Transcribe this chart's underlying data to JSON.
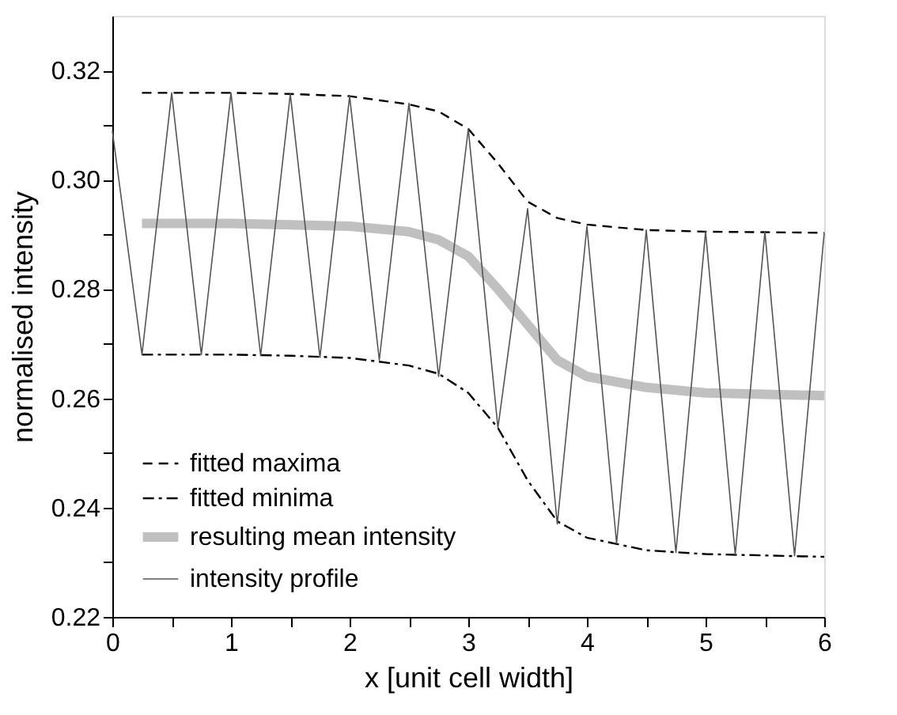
{
  "chart_data": {
    "type": "line",
    "xlabel": "x [unit cell width]",
    "ylabel": "normalised intensity",
    "xlim": [
      0,
      6
    ],
    "ylim": [
      0.22,
      0.33
    ],
    "xticks": [
      0,
      {
        "value": 0.5,
        "label": null
      },
      1,
      {
        "value": 1.5,
        "label": null
      },
      2,
      {
        "value": 2.5,
        "label": null
      },
      3,
      {
        "value": 3.5,
        "label": null
      },
      4,
      {
        "value": 4.5,
        "label": null
      },
      5,
      {
        "value": 5.5,
        "label": null
      },
      6
    ],
    "yticks": [
      {
        "value": 0.22,
        "label": "0.22"
      },
      {
        "value": 0.23,
        "label": null
      },
      {
        "value": 0.24,
        "label": "0.24"
      },
      {
        "value": 0.25,
        "label": null
      },
      {
        "value": 0.26,
        "label": "0.26"
      },
      {
        "value": 0.27,
        "label": null
      },
      {
        "value": 0.28,
        "label": "0.28"
      },
      {
        "value": 0.29,
        "label": null
      },
      {
        "value": 0.3,
        "label": "0.30"
      },
      {
        "value": 0.31,
        "label": null
      },
      {
        "value": 0.32,
        "label": "0.32"
      }
    ],
    "grid": false,
    "legend": "bottom left",
    "marker": "none",
    "series": [
      {
        "name": "fitted maxima",
        "type": "line",
        "line_style": "dashed",
        "color": "#000000",
        "x": [
          0.25,
          1,
          1.5,
          2,
          2.5,
          2.75,
          3,
          3.25,
          3.5,
          3.75,
          4,
          4.5,
          5,
          6
        ],
        "values": [
          0.3159,
          0.3159,
          0.3157,
          0.3153,
          0.3138,
          0.3125,
          0.3093,
          0.303,
          0.296,
          0.293,
          0.2918,
          0.2908,
          0.2905,
          0.2903
        ]
      },
      {
        "name": "fitted minima",
        "type": "line",
        "line_style": "dashdot",
        "color": "#000000",
        "x": [
          0.25,
          1,
          1.5,
          2,
          2.5,
          2.75,
          3,
          3.25,
          3.5,
          3.75,
          4,
          4.5,
          5,
          6
        ],
        "values": [
          0.268,
          0.268,
          0.2678,
          0.2674,
          0.266,
          0.2645,
          0.261,
          0.2546,
          0.245,
          0.2375,
          0.2345,
          0.2322,
          0.2315,
          0.231
        ]
      },
      {
        "name": "resulting mean intensity",
        "type": "line",
        "line_style": "solid",
        "color": "#c0c0c0",
        "x": [
          0.25,
          1,
          2,
          2.5,
          2.75,
          3,
          3.25,
          3.5,
          3.75,
          4,
          4.5,
          5,
          6
        ],
        "values": [
          0.292,
          0.292,
          0.2915,
          0.2905,
          0.289,
          0.286,
          0.28,
          0.2735,
          0.267,
          0.264,
          0.262,
          0.261,
          0.2605
        ]
      },
      {
        "name": "intensity profile",
        "type": "line",
        "line_style": "solid",
        "color": "#555555",
        "x": [
          0,
          0.25,
          0.5,
          0.75,
          1,
          1.25,
          1.5,
          1.75,
          2,
          2.25,
          2.5,
          2.75,
          3,
          3.25,
          3.5,
          3.75,
          4,
          4.25,
          4.5,
          4.75,
          5,
          5.25,
          5.5,
          5.75,
          6
        ],
        "values": [
          0.309,
          0.268,
          0.3159,
          0.268,
          0.3159,
          0.2678,
          0.3157,
          0.2675,
          0.3153,
          0.267,
          0.314,
          0.264,
          0.3093,
          0.2546,
          0.2947,
          0.237,
          0.2915,
          0.2335,
          0.2908,
          0.2318,
          0.2905,
          0.2314,
          0.2905,
          0.2312,
          0.2903
        ]
      }
    ]
  }
}
